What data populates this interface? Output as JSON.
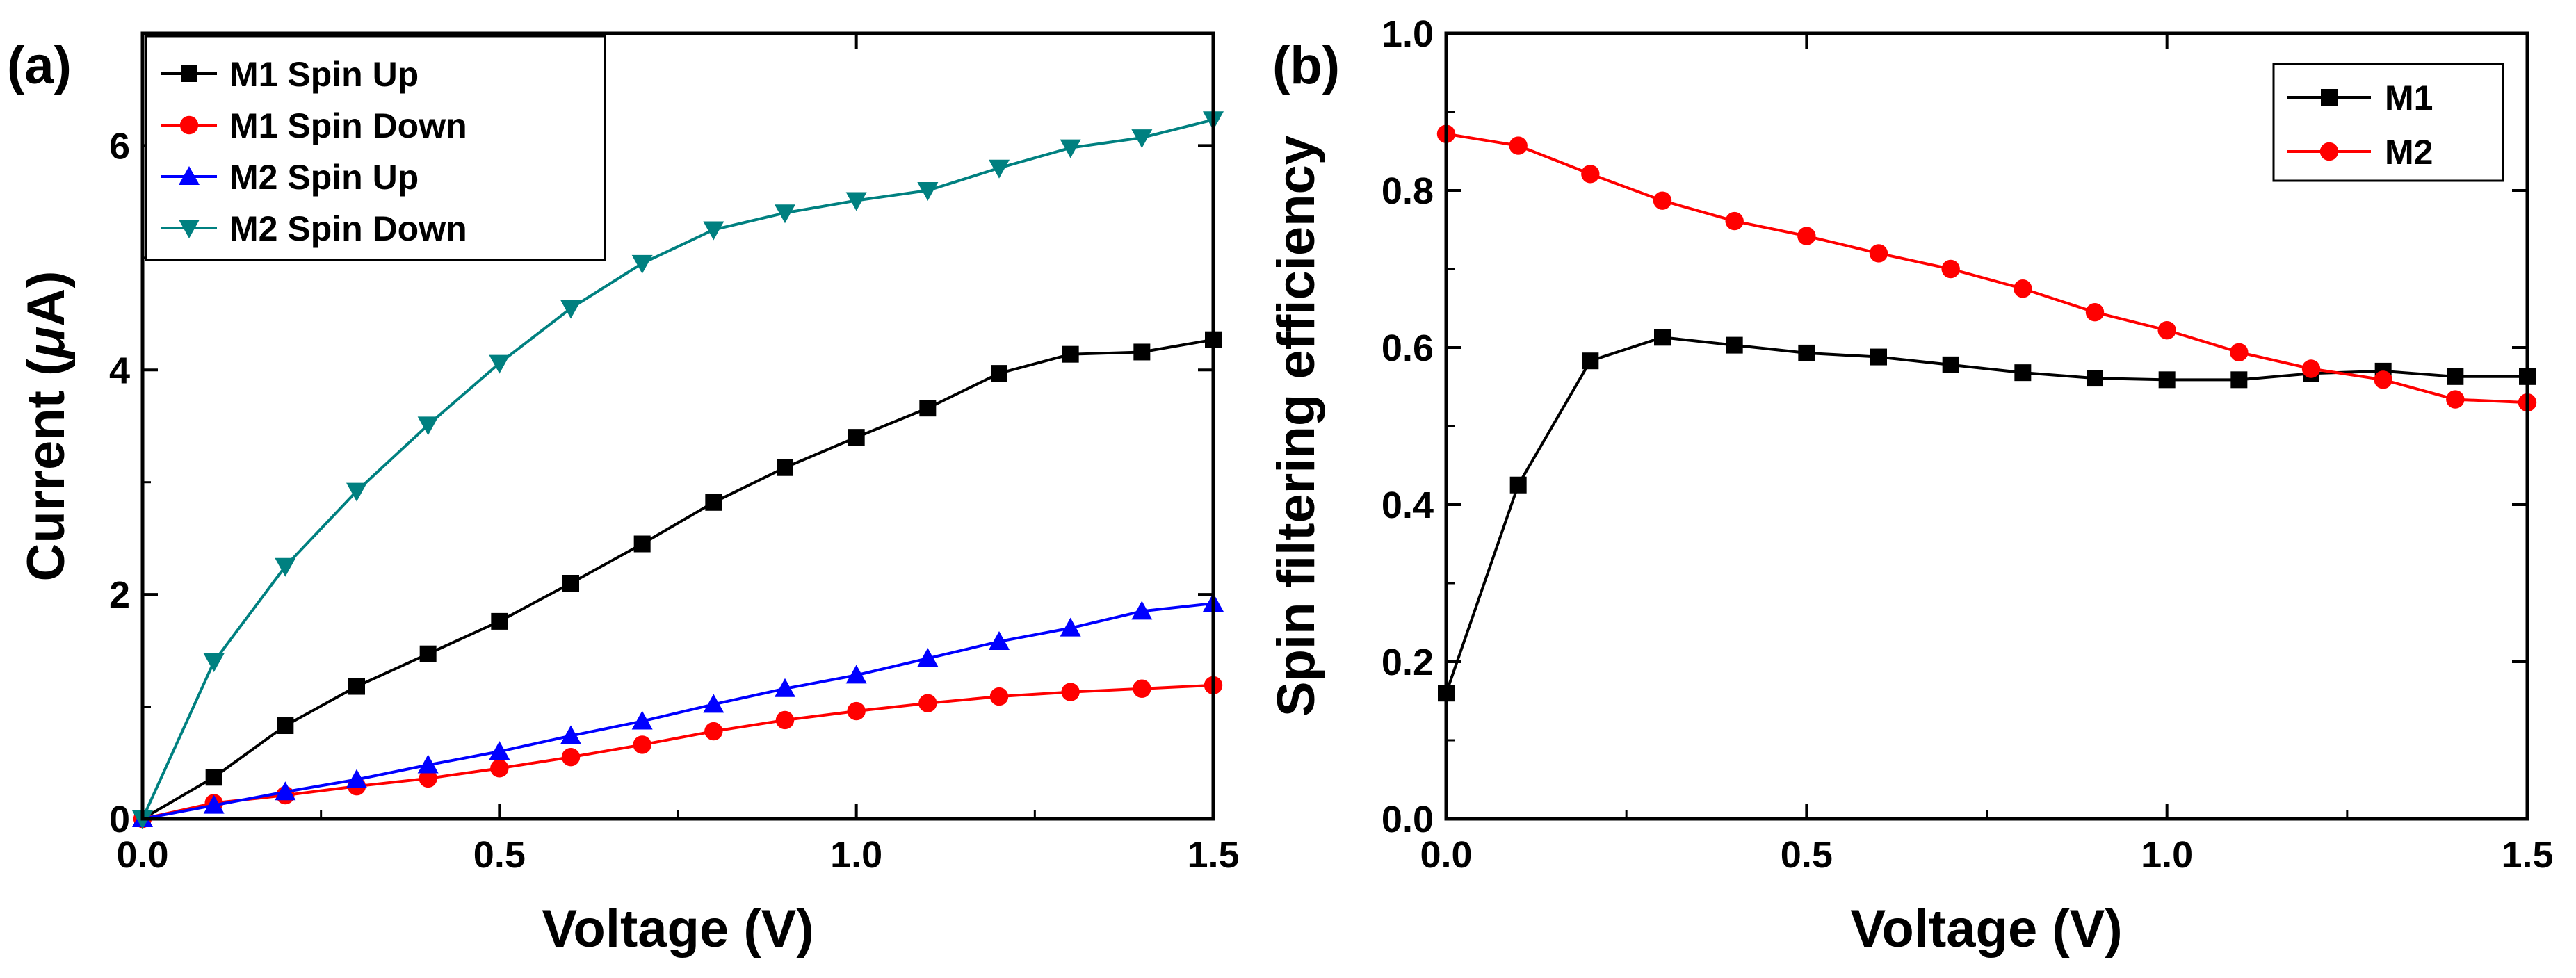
{
  "chart_data": [
    {
      "panel_label": "(a)",
      "type": "line",
      "xlabel": "Voltage (V)",
      "ylabel_prefix": "Current (",
      "ylabel_mu": "μ",
      "ylabel_suffix": "A)",
      "xlim": [
        0,
        1.5
      ],
      "ylim": [
        0,
        7
      ],
      "x_ticks": [
        0,
        0.5,
        1.0,
        1.5
      ],
      "x_tick_labels": [
        "0.0",
        "0.5",
        "1.0",
        "1.5"
      ],
      "y_ticks": [
        0,
        2,
        4,
        6
      ],
      "y_tick_labels": [
        "0",
        "2",
        "4",
        "6"
      ],
      "legend_position": "top-left",
      "x": [
        0,
        0.1,
        0.2,
        0.3,
        0.4,
        0.5,
        0.6,
        0.7,
        0.8,
        0.9,
        1.0,
        1.1,
        1.2,
        1.3,
        1.4,
        1.5
      ],
      "series": [
        {
          "name": "M1 Spin Up",
          "color": "#000000",
          "marker": "square",
          "values": [
            0,
            0.37,
            0.83,
            1.18,
            1.47,
            1.76,
            2.1,
            2.45,
            2.82,
            3.13,
            3.4,
            3.66,
            3.97,
            4.14,
            4.16,
            4.27
          ]
        },
        {
          "name": "M1 Spin Down",
          "color": "#ff0000",
          "marker": "circle",
          "values": [
            0,
            0.14,
            0.21,
            0.29,
            0.36,
            0.45,
            0.55,
            0.66,
            0.78,
            0.88,
            0.96,
            1.03,
            1.09,
            1.13,
            1.16,
            1.19
          ]
        },
        {
          "name": "M2 Spin Up",
          "color": "#0000ff",
          "marker": "triangle-up",
          "values": [
            0,
            0.12,
            0.24,
            0.35,
            0.48,
            0.6,
            0.74,
            0.87,
            1.02,
            1.16,
            1.28,
            1.43,
            1.58,
            1.7,
            1.85,
            1.92
          ]
        },
        {
          "name": "M2 Spin Down",
          "color": "#008080",
          "marker": "triangle-down",
          "values": [
            0,
            1.4,
            2.25,
            2.92,
            3.51,
            4.06,
            4.55,
            4.95,
            5.25,
            5.4,
            5.51,
            5.6,
            5.8,
            5.98,
            6.07,
            6.23
          ]
        }
      ]
    },
    {
      "panel_label": "(b)",
      "type": "line",
      "xlabel": "Voltage (V)",
      "ylabel": "Spin filtering efficiency",
      "xlim": [
        0,
        1.5
      ],
      "ylim": [
        0,
        1.0
      ],
      "x_ticks": [
        0,
        0.5,
        1.0,
        1.5
      ],
      "x_tick_labels": [
        "0.0",
        "0.5",
        "1.0",
        "1.5"
      ],
      "y_ticks": [
        0,
        0.2,
        0.4,
        0.6,
        0.8,
        1.0
      ],
      "y_tick_labels": [
        "0.0",
        "0.2",
        "0.4",
        "0.6",
        "0.8",
        "1.0"
      ],
      "legend_position": "top-right",
      "x": [
        0,
        0.1,
        0.2,
        0.3,
        0.4,
        0.5,
        0.6,
        0.7,
        0.8,
        0.9,
        1.0,
        1.1,
        1.2,
        1.3,
        1.4,
        1.5
      ],
      "series": [
        {
          "name": "M1",
          "color": "#000000",
          "marker": "square",
          "values": [
            0.16,
            0.425,
            0.583,
            0.613,
            0.603,
            0.593,
            0.588,
            0.578,
            0.568,
            0.561,
            0.559,
            0.559,
            0.567,
            0.57,
            0.563,
            0.563
          ]
        },
        {
          "name": "M2",
          "color": "#ff0000",
          "marker": "circle",
          "values": [
            0.872,
            0.857,
            0.821,
            0.787,
            0.761,
            0.742,
            0.72,
            0.7,
            0.675,
            0.645,
            0.622,
            0.594,
            0.573,
            0.559,
            0.534,
            0.53
          ]
        }
      ]
    }
  ]
}
